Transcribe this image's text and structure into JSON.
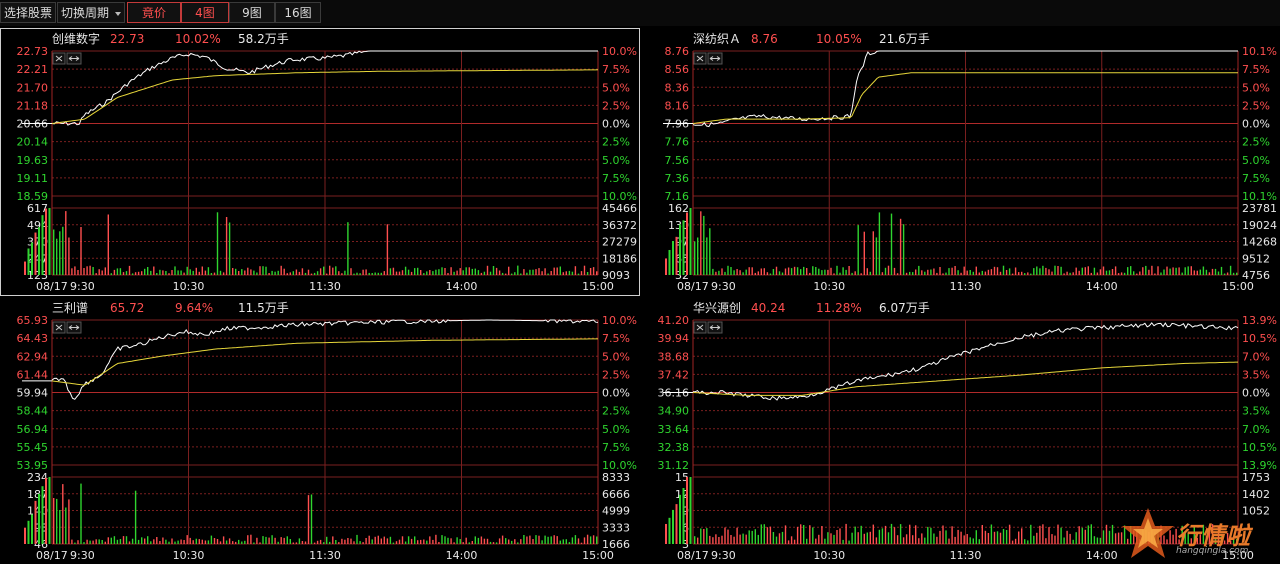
{
  "toolbar": {
    "select_stock": "选择股票",
    "switch_period": "切换周期",
    "auction": "竟价",
    "view4": "4图",
    "view9": "9图",
    "view16": "16图"
  },
  "colors": {
    "up": "#ff4f4f",
    "down": "#2fd52f",
    "price_line": "#ffffff",
    "avg_line": "#e6d63a",
    "grid": "#7a1f1f",
    "text": "#dddddd"
  },
  "icons": {
    "close": "close-icon",
    "expand": "expand-icon"
  },
  "panels": [
    {
      "name": "创维数字",
      "price": "22.73",
      "pct": "10.02%",
      "volume": "58.2万手",
      "left_ticks": [
        "22.73",
        "22.21",
        "21.70",
        "21.18",
        "20.66",
        "20.14",
        "19.63",
        "19.11",
        "18.59"
      ],
      "right_ticks": [
        "10.0%",
        "7.5%",
        "5.0%",
        "2.5%",
        "0.0%",
        "2.5%",
        "5.0%",
        "7.5%",
        "10.0%"
      ],
      "vol_left": [
        "617",
        "494",
        "370",
        "247",
        "123"
      ],
      "vol_right": [
        "45466",
        "36372",
        "27279",
        "18186",
        "9093"
      ],
      "date": "08/17",
      "times": [
        "9:30",
        "10:30",
        "11:30",
        "14:00",
        "15:00"
      ]
    },
    {
      "name": "深纺织Ａ",
      "price": "8.76",
      "pct": "10.05%",
      "volume": "21.6万手",
      "left_ticks": [
        "8.76",
        "8.56",
        "8.36",
        "8.16",
        "7.96",
        "7.76",
        "7.56",
        "7.36",
        "7.16"
      ],
      "right_ticks": [
        "10.1%",
        "7.5%",
        "5.0%",
        "2.5%",
        "0.0%",
        "2.5%",
        "5.0%",
        "7.5%",
        "10.1%"
      ],
      "vol_left": [
        "162",
        "130",
        "97",
        "65",
        "32"
      ],
      "vol_right": [
        "23781",
        "19024",
        "14268",
        "9512",
        "4756"
      ],
      "date": "08/17",
      "times": [
        "9:30",
        "10:30",
        "11:30",
        "14:00",
        "15:00"
      ]
    },
    {
      "name": "三利谱",
      "price": "65.72",
      "pct": "9.64%",
      "volume": "11.5万手",
      "left_ticks": [
        "65.93",
        "64.43",
        "62.94",
        "61.44",
        "59.94",
        "58.44",
        "56.94",
        "55.45",
        "53.95"
      ],
      "right_ticks": [
        "10.0%",
        "7.5%",
        "5.0%",
        "2.5%",
        "0.0%",
        "2.5%",
        "5.0%",
        "7.5%",
        "10.0%"
      ],
      "vol_left": [
        "234",
        "187",
        "140",
        "93",
        "46"
      ],
      "vol_right": [
        "8333",
        "6666",
        "4999",
        "3333",
        "1666"
      ],
      "date": "08/17",
      "times": [
        "9:30",
        "10:30",
        "11:30",
        "14:00",
        "15:00"
      ]
    },
    {
      "name": "华兴源创",
      "price": "40.24",
      "pct": "11.28%",
      "volume": "6.07万手",
      "left_ticks": [
        "41.20",
        "39.94",
        "38.68",
        "37.42",
        "36.16",
        "34.90",
        "33.64",
        "32.38",
        "31.12"
      ],
      "right_ticks": [
        "13.9%",
        "10.5%",
        "7.0%",
        "3.5%",
        "0.0%",
        "3.5%",
        "7.0%",
        "10.5%",
        "13.9%"
      ],
      "vol_left": [
        "15",
        "12",
        "9",
        "6",
        "3"
      ],
      "vol_right": [
        "1753",
        "1402",
        "1052",
        "",
        ""
      ],
      "date": "08/17",
      "times": [
        "9:30",
        "10:30",
        "11:30",
        "14:00",
        "15:00"
      ]
    }
  ],
  "watermark": {
    "logo_text": "行情啦",
    "logo_sub": "hangqingla.com"
  }
}
